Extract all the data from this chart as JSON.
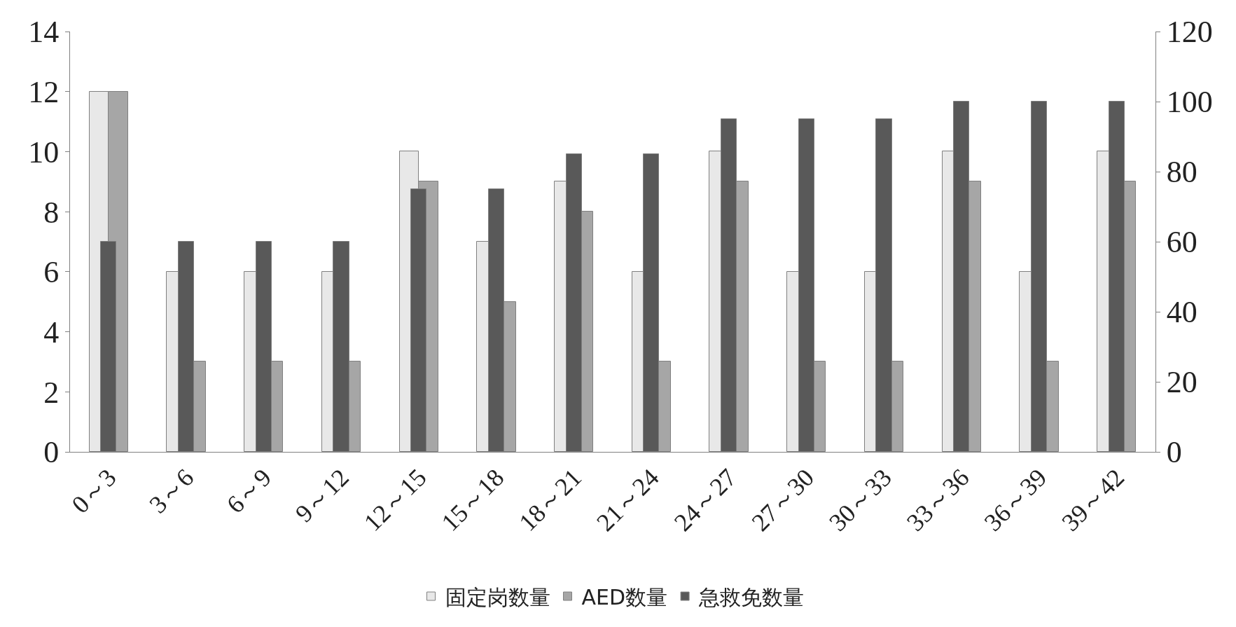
{
  "chart_data": {
    "type": "bar",
    "categories": [
      "0～3",
      "3～6",
      "6～9",
      "9～12",
      "12～15",
      "15～18",
      "18～21",
      "21～24",
      "24～27",
      "27～30",
      "30～33",
      "33～36",
      "36～39",
      "39～42"
    ],
    "series": [
      {
        "name": "固定岗数量",
        "color": "#e8e8e8",
        "values": [
          12,
          6,
          6,
          6,
          10,
          7,
          9,
          6,
          10,
          6,
          6,
          10,
          6,
          10
        ]
      },
      {
        "name": "AED数量",
        "color": "#a6a6a6",
        "values": [
          12,
          3,
          3,
          3,
          9,
          5,
          8,
          3,
          9,
          3,
          3,
          9,
          3,
          9
        ]
      },
      {
        "name": "急救免数量",
        "color": "#595959",
        "axis": "y2",
        "values": [
          60,
          60,
          60,
          60,
          75,
          75,
          85,
          85,
          95,
          95,
          95,
          100,
          100,
          100
        ]
      }
    ],
    "ylim": [
      0,
      14
    ],
    "yticks": [
      0,
      2,
      4,
      6,
      8,
      10,
      12,
      14
    ],
    "y2lim": [
      0,
      120
    ],
    "y2ticks": [
      0,
      20,
      40,
      60,
      80,
      100,
      120
    ],
    "grid": false,
    "legend": "bottom"
  }
}
